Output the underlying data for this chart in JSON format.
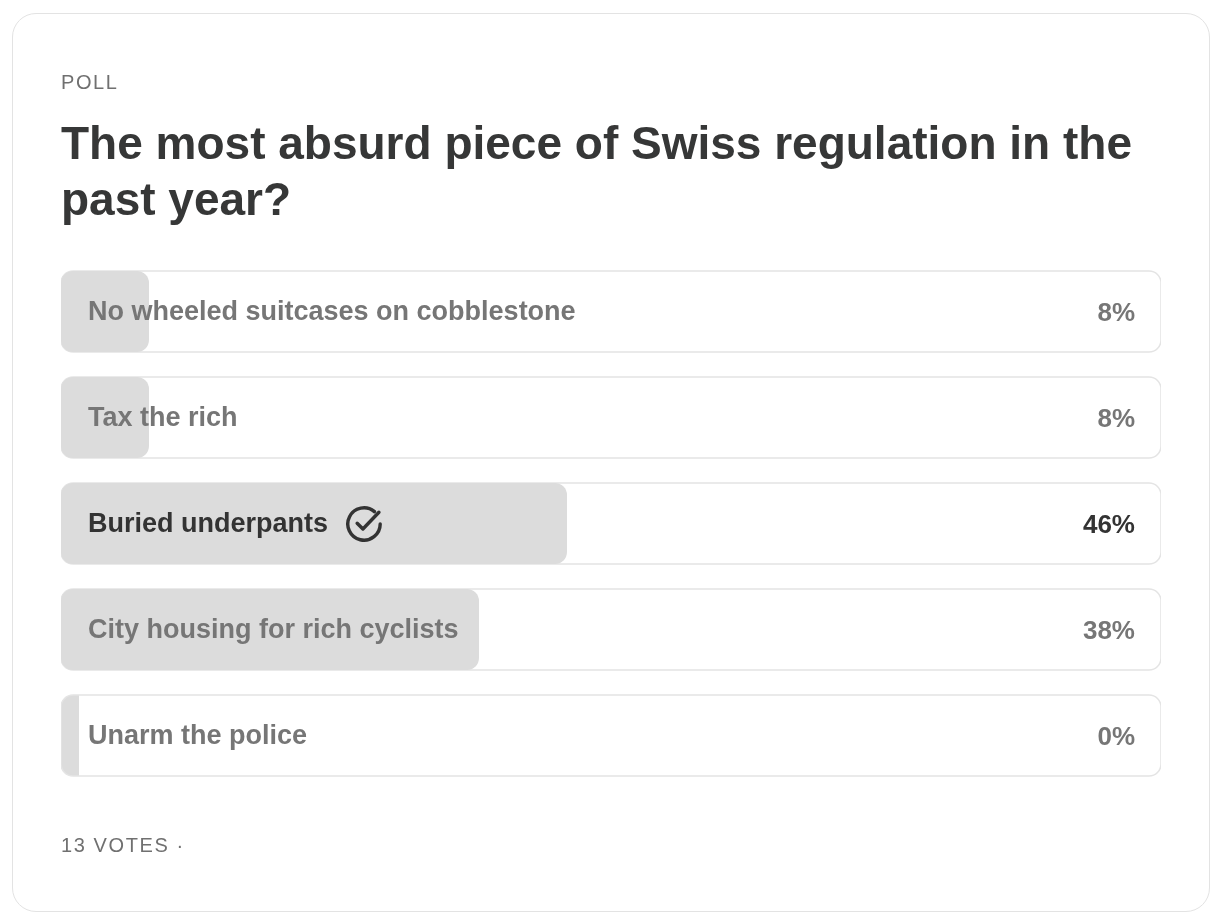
{
  "chart_data": {
    "type": "bar",
    "orientation": "horizontal",
    "title": "The most absurd piece of Swiss regulation in the past year?",
    "annotations": [
      "POLL",
      "13 VOTES ·"
    ],
    "categories": [
      "No wheeled suitcases on cobblestone",
      "Tax the rich",
      "Buried underpants",
      "City housing for rich cyclists",
      "Unarm the police"
    ],
    "values": [
      8,
      8,
      46,
      38,
      0
    ],
    "value_labels": [
      "8%",
      "8%",
      "46%",
      "38%",
      "0%"
    ],
    "color": "#dcdcdc",
    "xlim": [
      0,
      100
    ],
    "tick_labels": "y"
  }
}
